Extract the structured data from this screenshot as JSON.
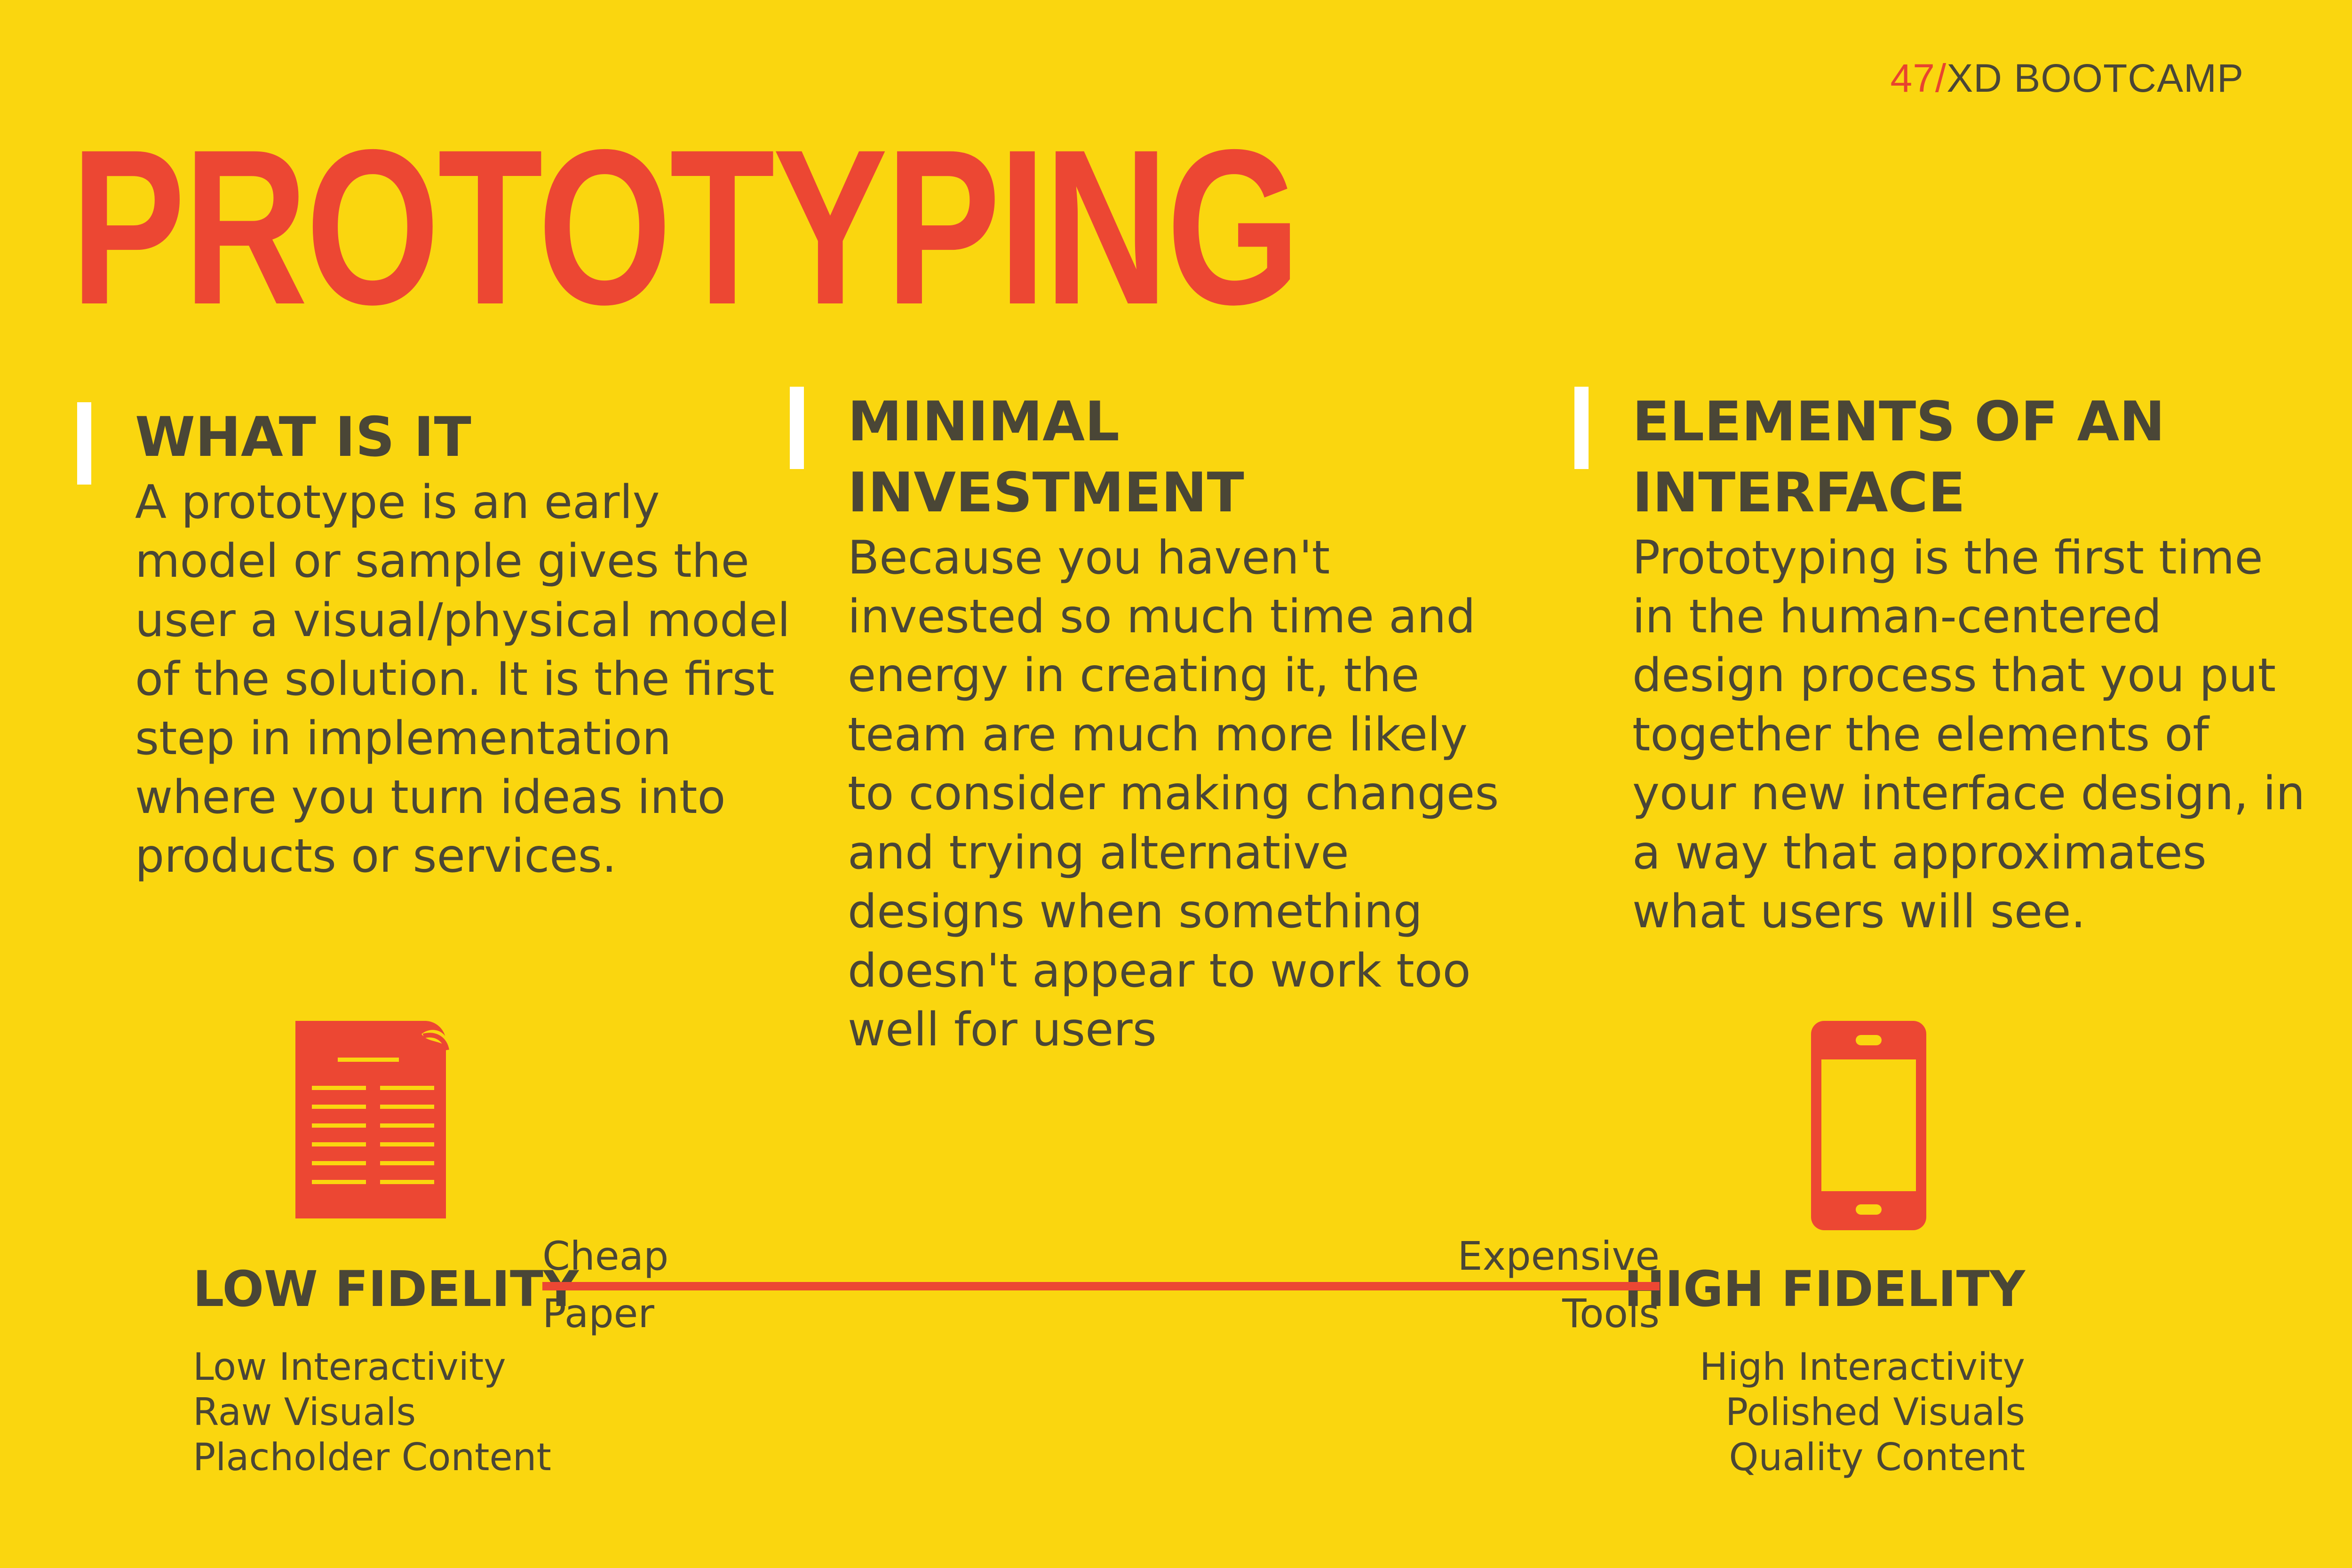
{
  "brand": {
    "number": "47/",
    "text": "XD BOOTCAMP"
  },
  "title": "PROTOTYPING",
  "columns": [
    {
      "heading": "WHAT IS IT",
      "body": "A prototype is an early model or sample gives the user a visual/physical model of the solution. It is the first step in implementation where you turn ideas into products or services."
    },
    {
      "heading": "MINIMAL INVESTMENT",
      "body": "Because you haven't invested so much time and energy in creating it, the team are much more likely to consider making changes and trying alternative designs when something doesn't appear to work too well for users"
    },
    {
      "heading": "ELEMENTS OF AN INTERFACE",
      "body": "Prototyping is the first time in the human-centered design process that you put together the elements of your new interface design, in a way that approximates what users will see."
    }
  ],
  "fidelity": {
    "low": {
      "title": "LOW FIDELITY",
      "icon": "paper-document-icon",
      "items": [
        "Low Interactivity",
        "Raw Visuals",
        "Placholder Content"
      ]
    },
    "high": {
      "title": "HIGH FIDELITY",
      "icon": "smartphone-icon",
      "items": [
        "High Interactivity",
        "Polished Visuals",
        "Quality Content"
      ]
    },
    "scale": {
      "left_top": "Cheap",
      "left_bottom": "Paper",
      "right_top": "Expensive",
      "right_bottom": "Tools"
    }
  },
  "colors": {
    "background": "#FAD60F",
    "accent": "#EC4733",
    "text": "#4A4636",
    "bar": "#FFFFFF"
  }
}
